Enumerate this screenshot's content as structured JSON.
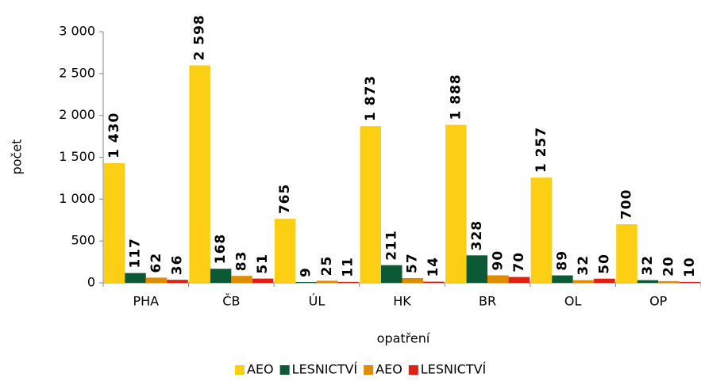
{
  "chart_data": {
    "type": "bar",
    "x_label": "opatření",
    "y_label": "počet",
    "categories": [
      "PHA",
      "ČB",
      "ÚL",
      "HK",
      "BR",
      "OL",
      "OP"
    ],
    "series": [
      {
        "name": "AEO",
        "color": "#fccf15",
        "values": [
          1430,
          2598,
          765,
          1873,
          1888,
          1257,
          700
        ],
        "value_labels": [
          "1 430",
          "2 598",
          "765",
          "1 873",
          "1 888",
          "1 257",
          "700"
        ]
      },
      {
        "name": "LESNICTVÍ",
        "color": "#0b5a35",
        "values": [
          117,
          168,
          9,
          211,
          328,
          89,
          32
        ]
      },
      {
        "name": "AEO",
        "color": "#e08c00",
        "values": [
          62,
          83,
          25,
          57,
          90,
          32,
          20
        ]
      },
      {
        "name": "LESNICTVÍ",
        "color": "#e02010",
        "values": [
          36,
          51,
          11,
          14,
          70,
          50,
          10
        ]
      }
    ],
    "ylim": [
      0,
      3000
    ],
    "yticks": [
      0,
      500,
      {
        "value": 1000,
        "label": "1 000"
      },
      {
        "value": 1500,
        "label": "1 500"
      },
      {
        "value": 2000,
        "label": "2 000"
      },
      {
        "value": 2500,
        "label": "2 500"
      },
      {
        "value": 3000,
        "label": "3 000"
      }
    ],
    "grid": false,
    "legend": "bottom"
  }
}
